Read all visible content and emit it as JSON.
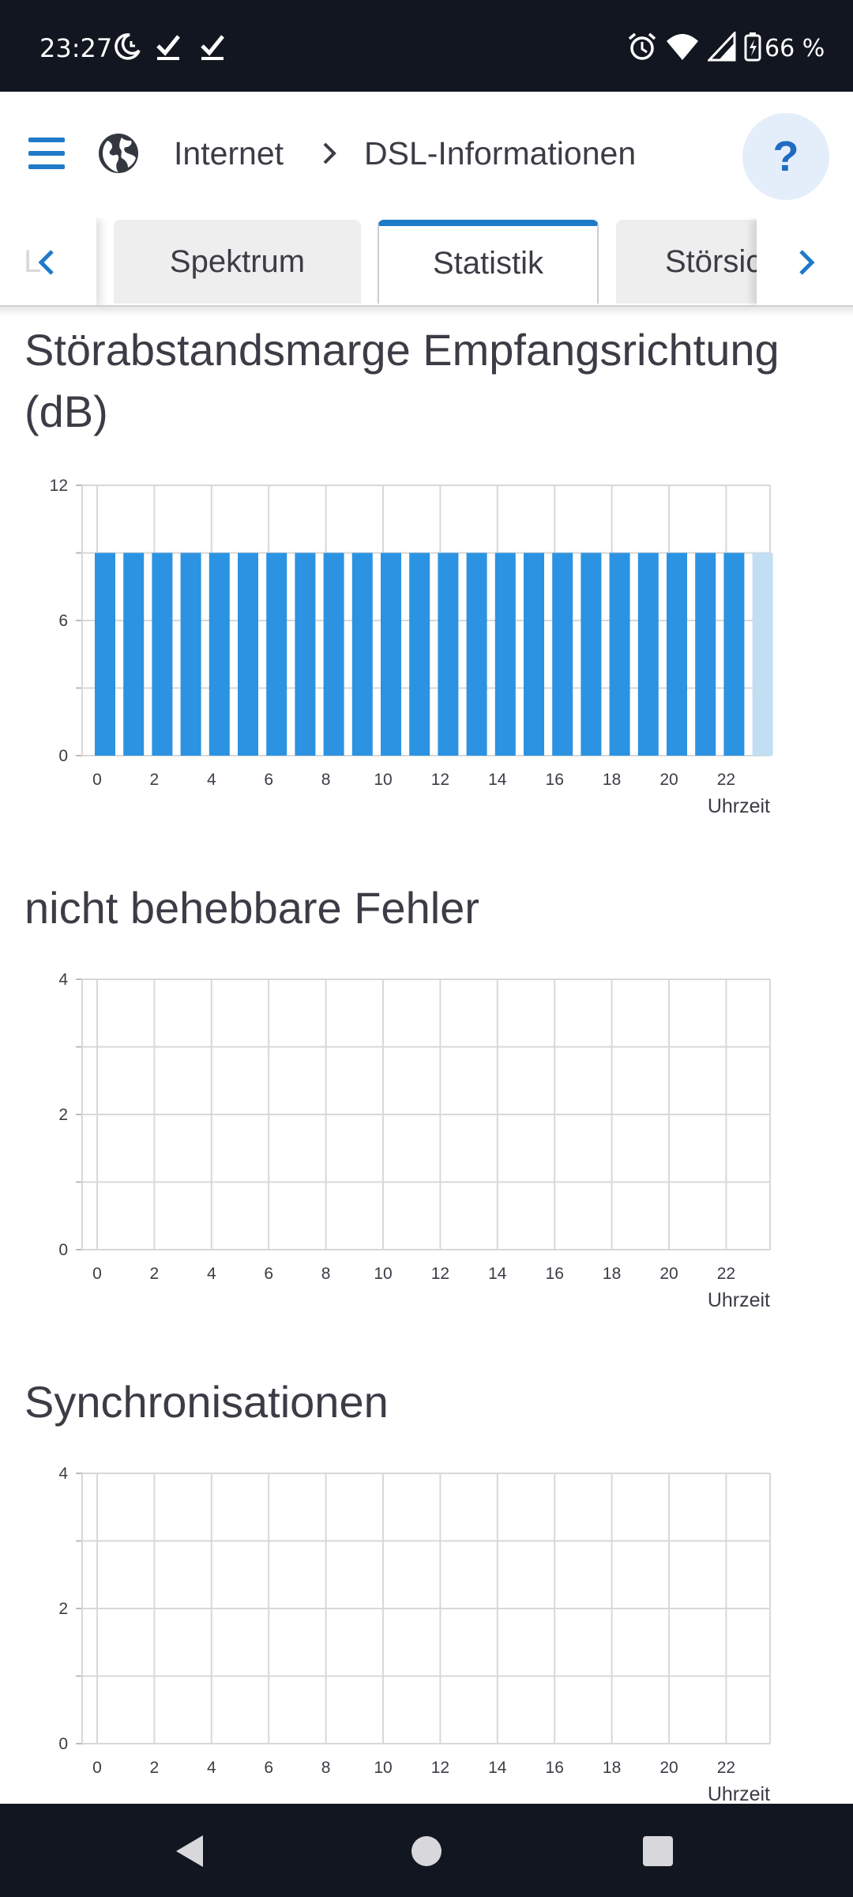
{
  "status_bar": {
    "time": "23:27",
    "icons": [
      "moon-clock-icon",
      "check-icon",
      "check-icon",
      "alarm-icon",
      "wifi-icon",
      "cell-signal-icon",
      "battery-charging-icon"
    ],
    "battery": "66 %"
  },
  "header": {
    "menu_icon": "hamburger-icon",
    "globe_icon": "globe-icon",
    "breadcrumb": [
      "Internet",
      "DSL-Informationen"
    ],
    "help_label": "?"
  },
  "tabs": {
    "partial_left": "L",
    "items": [
      "Spektrum",
      "Statistik",
      "Störsicherheit"
    ],
    "active": "Statistik",
    "partial_right_visible": "Störsich"
  },
  "colors": {
    "accent": "#1f7ac8",
    "bar": "#2b93e1",
    "bar_current": "#c2def3",
    "grid": "#d8d8d8",
    "text": "#3c3c46"
  },
  "chart_data": [
    {
      "type": "bar",
      "title": "Störabstandsmarge Empfangsrichtung (dB)",
      "x": [
        0,
        1,
        2,
        3,
        4,
        5,
        6,
        7,
        8,
        9,
        10,
        11,
        12,
        13,
        14,
        15,
        16,
        17,
        18,
        19,
        20,
        21,
        22,
        23
      ],
      "values": [
        9,
        9,
        9,
        9,
        9,
        9,
        9,
        9,
        9,
        9,
        9,
        9,
        9,
        9,
        9,
        9,
        9,
        9,
        9,
        9,
        9,
        9,
        9,
        9
      ],
      "highlight_last": true,
      "xticks": [
        "0",
        "2",
        "4",
        "6",
        "8",
        "10",
        "12",
        "14",
        "16",
        "18",
        "20",
        "22"
      ],
      "yticks": [
        "0",
        "6",
        "12"
      ],
      "ylim": [
        0,
        12
      ],
      "xlabel": "Uhrzeit",
      "grid": true
    },
    {
      "type": "bar",
      "title": "nicht behebbare Fehler",
      "x": [
        0,
        1,
        2,
        3,
        4,
        5,
        6,
        7,
        8,
        9,
        10,
        11,
        12,
        13,
        14,
        15,
        16,
        17,
        18,
        19,
        20,
        21,
        22,
        23
      ],
      "values": [
        0,
        0,
        0,
        0,
        0,
        0,
        0,
        0,
        0,
        0,
        0,
        0,
        0,
        0,
        0,
        0,
        0,
        0,
        0,
        0,
        0,
        0,
        0,
        0
      ],
      "xticks": [
        "0",
        "2",
        "4",
        "6",
        "8",
        "10",
        "12",
        "14",
        "16",
        "18",
        "20",
        "22"
      ],
      "yticks": [
        "0",
        "2",
        "4"
      ],
      "ylim": [
        0,
        4
      ],
      "xlabel": "Uhrzeit",
      "grid": true
    },
    {
      "type": "bar",
      "title": "Synchronisationen",
      "x": [
        0,
        1,
        2,
        3,
        4,
        5,
        6,
        7,
        8,
        9,
        10,
        11,
        12,
        13,
        14,
        15,
        16,
        17,
        18,
        19,
        20,
        21,
        22,
        23
      ],
      "values": [
        0,
        0,
        0,
        0,
        0,
        0,
        0,
        0,
        0,
        0,
        0,
        0,
        0,
        0,
        0,
        0,
        0,
        0,
        0,
        0,
        0,
        0,
        0,
        0
      ],
      "xticks": [
        "0",
        "2",
        "4",
        "6",
        "8",
        "10",
        "12",
        "14",
        "16",
        "18",
        "20",
        "22"
      ],
      "yticks": [
        "0",
        "2",
        "4"
      ],
      "ylim": [
        0,
        4
      ],
      "xlabel": "Uhrzeit",
      "grid": true
    }
  ],
  "nav_bar": {
    "icons": [
      "back-icon",
      "home-icon",
      "recents-icon"
    ]
  }
}
